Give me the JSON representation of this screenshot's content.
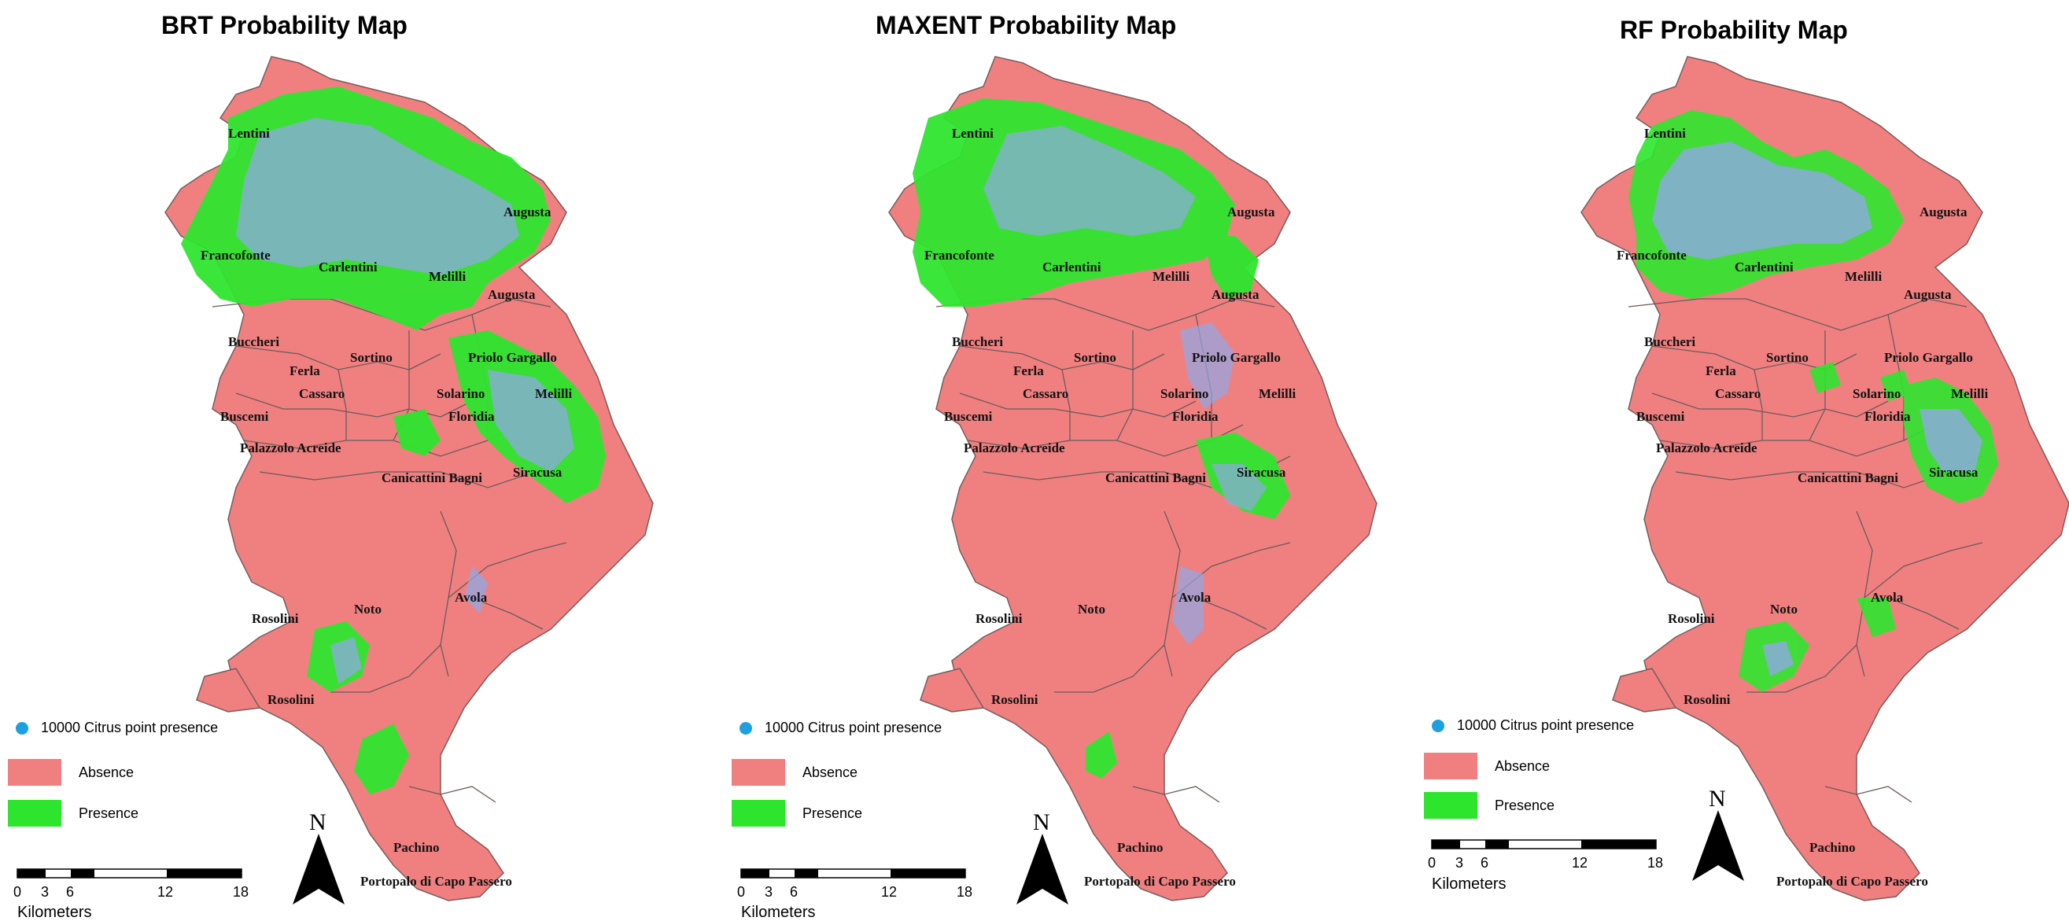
{
  "legend": {
    "points_label": "10000 Citrus point presence",
    "absence_label": "Absence",
    "presence_label": "Presence",
    "colors": {
      "absence": "#f08080",
      "presence": "#2ee52e",
      "points": "#1e9fe0",
      "points_overlay": "#8fa8e6"
    }
  },
  "scale": {
    "ticks": [
      "0",
      "3",
      "6",
      "12",
      "18"
    ],
    "unit": "Kilometers"
  },
  "north_label": "N",
  "places": {
    "lentini": "Lentini",
    "augusta": "Augusta",
    "francofonte": "Francofonte",
    "carlentini": "Carlentini",
    "melilli": "Melilli",
    "buccheri": "Buccheri",
    "sortino": "Sortino",
    "priolo": "Priolo Gargallo",
    "ferla": "Ferla",
    "cassaro": "Cassaro",
    "solarino": "Solarino",
    "buscemi": "Buscemi",
    "floridia": "Floridia",
    "palazzolo": "Palazzolo Acreide",
    "canicattini": "Canicattini Bagni",
    "siracusa": "Siracusa",
    "noto": "Noto",
    "avola": "Avola",
    "rosolini": "Rosolini",
    "pachino": "Pachino",
    "portopalo": "Portopalo di Capo Passero"
  },
  "maps": [
    {
      "title": "BRT Probability Map"
    },
    {
      "title": "MAXENT Probability Map"
    },
    {
      "title": "RF Probability Map"
    }
  ]
}
